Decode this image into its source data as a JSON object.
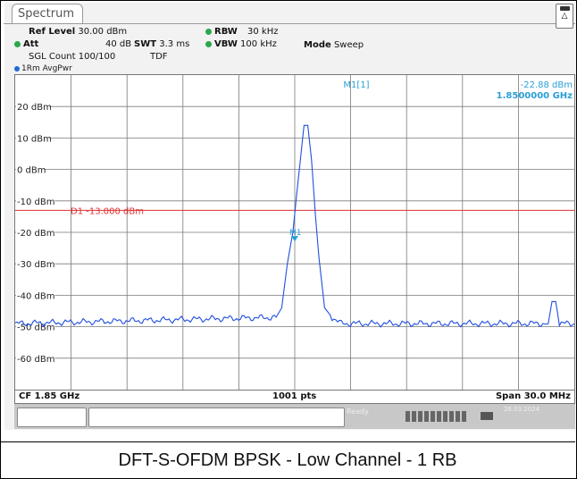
{
  "tab": {
    "title": "Spectrum"
  },
  "header": {
    "ref_level_label": "Ref Level",
    "ref_level_value": "30.00 dBm",
    "att_label": "Att",
    "att_value": "40 dB",
    "swt_label": "SWT",
    "swt_value": "3.3 ms",
    "rbw_label": "RBW",
    "rbw_value": "30 kHz",
    "vbw_label": "VBW",
    "vbw_value": "100 kHz",
    "mode_label": "Mode",
    "mode_value": "Sweep",
    "sgl_count": "SGL Count 100/100",
    "tdf": "TDF"
  },
  "trace_label": "1Rm AvgPwr",
  "marker": {
    "label": "M1[1]",
    "level": "-22.88 dBm",
    "freq": "1.8500000 GHz",
    "tag": "M1"
  },
  "display_line": {
    "label": "D1  -13.000 dBm",
    "value": -13
  },
  "footer": {
    "cf": "CF 1.85 GHz",
    "pts": "1001 pts",
    "span": "Span 30.0 MHz"
  },
  "status": {
    "ready": "Ready",
    "date": "26.03.2024"
  },
  "caption": "DFT-S-OFDM BPSK - Low Channel - 1 RB",
  "colors": {
    "trace": "#1f4fe0",
    "display_line": "#e03030",
    "marker_text": "#2a9fd6",
    "grid": "#7a7a7a"
  },
  "chart_data": {
    "type": "line",
    "x_start_mhz": 1835,
    "x_stop_mhz": 1865,
    "ylim": [
      -70,
      30
    ],
    "ytick_labels": [
      "20 dBm",
      "10 dBm",
      "0 dBm",
      "-10 dBm",
      "-20 dBm",
      "-30 dBm",
      "-40 dBm",
      "-50 dBm",
      "-60 dBm"
    ],
    "ytick_values": [
      20,
      10,
      0,
      -10,
      -20,
      -30,
      -40,
      -50,
      -60
    ],
    "grid": true,
    "noise_floor_dbm": -49,
    "series": [
      {
        "x_mhz": [
          1835,
          1849.0,
          1849.3,
          1849.6,
          1849.9,
          1850.1,
          1850.3,
          1850.5,
          1850.7,
          1850.9,
          1851.1,
          1851.3,
          1851.6,
          1852.0,
          1852.5,
          1863.6,
          1863.8,
          1864.0,
          1864.2,
          1865
        ],
        "y_dbm": [
          -49,
          -47,
          -44,
          -30,
          -20,
          -8,
          3,
          14,
          14,
          3,
          -14,
          -28,
          -44,
          -47,
          -49,
          -49,
          -42,
          -42,
          -49,
          -49
        ]
      }
    ],
    "marker_x_mhz": 1850.0,
    "marker_y_dbm": -22.88
  }
}
